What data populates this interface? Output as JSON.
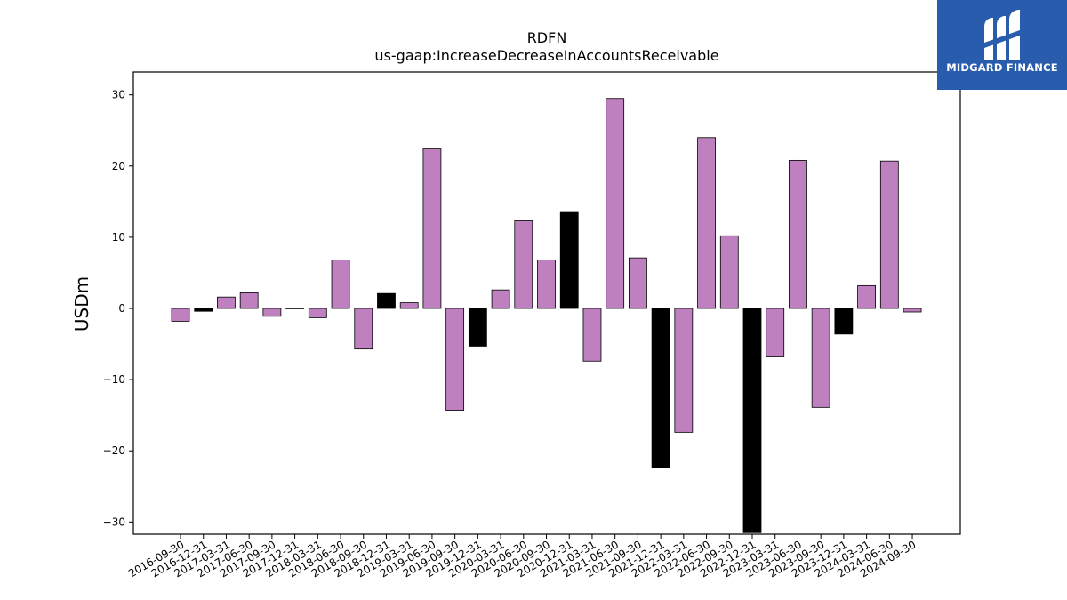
{
  "chart_data": {
    "type": "bar",
    "title": "RDFN",
    "subtitle": "us-gaap:IncreaseDecreaseInAccountsReceivable",
    "ylabel": "USDm",
    "xlabel": "",
    "ylim": [
      -31.5,
      33
    ],
    "yticks": [
      -30,
      -20,
      -10,
      0,
      10,
      20,
      30
    ],
    "yticklabels": [
      "−30",
      "−20",
      "−10",
      "0",
      "10",
      "20",
      "30"
    ],
    "grid": false,
    "colors": {
      "default": "#bf80bf",
      "q4": "#000000",
      "edge": "#000000"
    },
    "categories": [
      "2016-09-30",
      "2016-12-31",
      "2017-03-31",
      "2017-06-30",
      "2017-09-30",
      "2017-12-31",
      "2018-03-31",
      "2018-06-30",
      "2018-09-30",
      "2018-12-31",
      "2019-03-31",
      "2019-06-30",
      "2019-09-30",
      "2019-12-31",
      "2020-03-31",
      "2020-06-30",
      "2020-09-30",
      "2020-12-31",
      "2021-03-31",
      "2021-06-30",
      "2021-09-30",
      "2021-12-31",
      "2022-03-31",
      "2022-06-30",
      "2022-09-30",
      "2022-12-31",
      "2023-03-31",
      "2023-06-30",
      "2023-09-30",
      "2023-12-31",
      "2024-03-31",
      "2024-06-30",
      "2024-09-30"
    ],
    "values": [
      -1.8,
      -0.4,
      1.6,
      2.2,
      -1.1,
      0.05,
      -1.3,
      6.8,
      -5.7,
      2.1,
      0.8,
      22.4,
      -14.3,
      -5.3,
      2.6,
      12.3,
      6.8,
      13.6,
      -7.4,
      29.5,
      7.1,
      -22.4,
      -17.4,
      24.0,
      10.2,
      -31.5,
      -6.8,
      20.8,
      -13.9,
      -3.6,
      3.2,
      20.7,
      -0.5
    ]
  },
  "logo": {
    "name": "MIDGARD FINANCE",
    "color": "#2a5cad",
    "icon": "midgard-logo-icon"
  }
}
